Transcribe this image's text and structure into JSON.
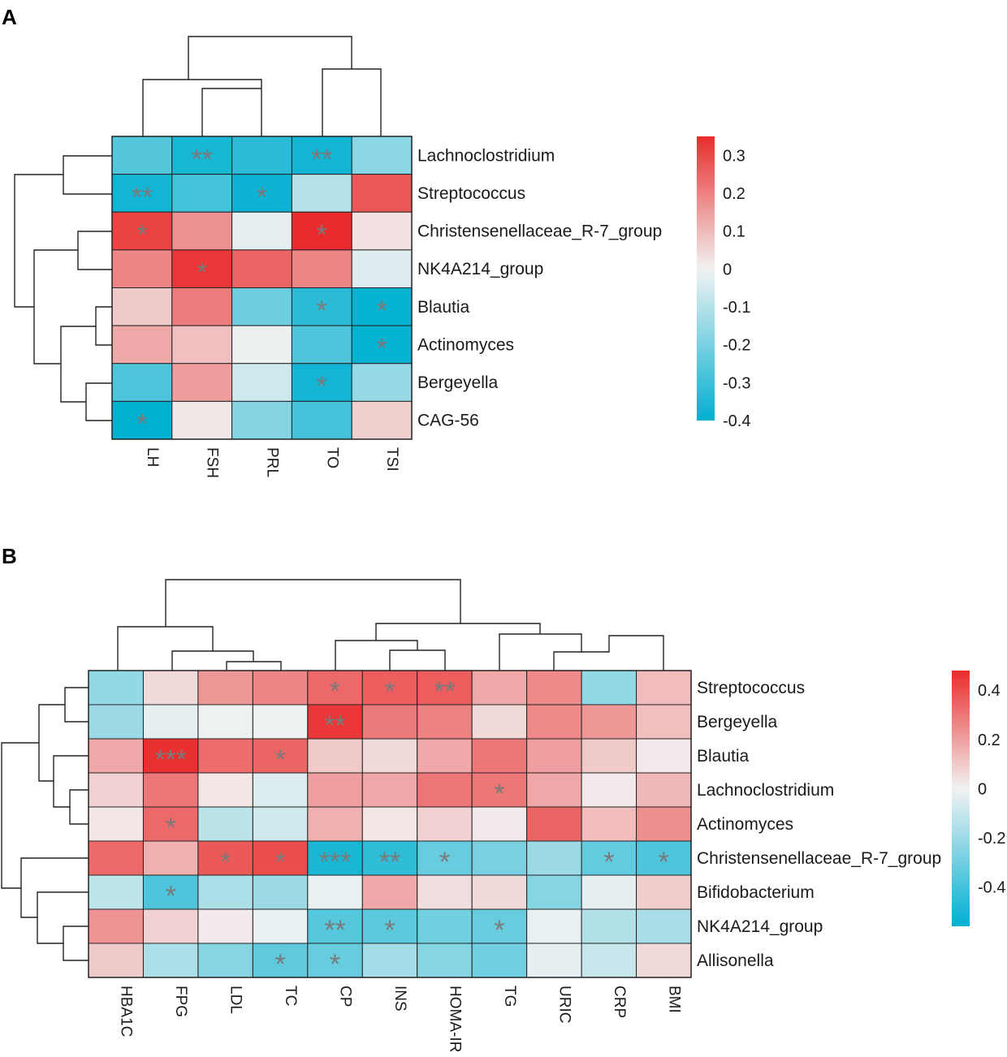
{
  "chart_data": [
    {
      "panel": "A",
      "type": "heatmap",
      "rows": [
        "Lachnoclostridium",
        "Streptococcus",
        "Christensenellaceae_R-7_group",
        "NK4A214_group",
        "Blautia",
        "Actinomyces",
        "Bergeyella",
        "CAG-56"
      ],
      "columns": [
        "LH",
        "FSH",
        "PRL",
        "TO",
        "TSI"
      ],
      "values": [
        [
          -0.26,
          -0.36,
          -0.33,
          -0.37,
          -0.17
        ],
        [
          -0.37,
          -0.29,
          -0.38,
          -0.1,
          0.27
        ],
        [
          0.31,
          0.17,
          -0.02,
          0.36,
          0.03
        ],
        [
          0.19,
          0.33,
          0.25,
          0.19,
          -0.03
        ],
        [
          0.07,
          0.21,
          -0.22,
          -0.33,
          -0.39
        ],
        [
          0.13,
          0.09,
          -0.01,
          -0.27,
          -0.39
        ],
        [
          -0.27,
          0.15,
          -0.06,
          -0.37,
          -0.15
        ],
        [
          -0.4,
          0.02,
          -0.18,
          -0.29,
          0.06
        ]
      ],
      "significance": [
        [
          "",
          "**",
          "",
          "**",
          ""
        ],
        [
          "**",
          "",
          "*",
          "",
          ""
        ],
        [
          "*",
          "",
          "",
          "*",
          ""
        ],
        [
          "",
          "*",
          "",
          "",
          ""
        ],
        [
          "",
          "",
          "",
          "*",
          "*"
        ],
        [
          "",
          "",
          "",
          "",
          "*"
        ],
        [
          "",
          "",
          "",
          "*",
          ""
        ],
        [
          "*",
          "",
          "",
          "",
          ""
        ]
      ],
      "colorbar": {
        "min": -0.4,
        "max": 0.35,
        "ticks": [
          "0.3",
          "0.2",
          "0.1",
          "0",
          "-0.1",
          "-0.2",
          "-0.3",
          "-0.4"
        ]
      },
      "colors": {
        "low": "#00b0d1",
        "mid": "#f2f2f2",
        "high": "#ea2b2b"
      }
    },
    {
      "panel": "B",
      "type": "heatmap",
      "rows": [
        "Streptococcus",
        "Bergeyella",
        "Blautia",
        "Lachnoclostridium",
        "Actinomyces",
        "Christensenellaceae_R-7_group",
        "Bifidobacterium",
        "NK4A214_group",
        "Allisonella"
      ],
      "columns": [
        "HBA1C",
        "FPG",
        "LDL",
        "TC",
        "CP",
        "INS",
        "HOMA-IR",
        "TG",
        "URIC",
        "CRP",
        "BMI"
      ],
      "values": [
        [
          -0.22,
          0.06,
          0.22,
          0.26,
          0.33,
          0.36,
          0.36,
          0.18,
          0.25,
          -0.22,
          0.13
        ],
        [
          -0.2,
          -0.03,
          -0.01,
          -0.01,
          0.45,
          0.29,
          0.27,
          0.06,
          0.25,
          0.22,
          0.12
        ],
        [
          0.18,
          0.47,
          0.32,
          0.34,
          0.1,
          0.06,
          0.18,
          0.3,
          0.2,
          0.1,
          0.02
        ],
        [
          0.08,
          0.3,
          0.03,
          -0.05,
          0.2,
          0.18,
          0.3,
          0.3,
          0.18,
          0.02,
          0.14
        ],
        [
          0.03,
          0.33,
          -0.13,
          -0.08,
          0.16,
          0.03,
          0.08,
          0.02,
          0.34,
          0.13,
          0.24
        ],
        [
          0.33,
          0.16,
          0.37,
          0.4,
          -0.5,
          -0.45,
          -0.32,
          -0.28,
          -0.2,
          -0.33,
          -0.38
        ],
        [
          -0.12,
          -0.38,
          -0.16,
          -0.2,
          -0.02,
          0.18,
          0.05,
          0.06,
          -0.25,
          -0.03,
          0.09
        ],
        [
          0.23,
          0.08,
          0.02,
          -0.02,
          -0.36,
          -0.35,
          -0.3,
          -0.32,
          -0.02,
          -0.15,
          -0.17
        ],
        [
          0.1,
          -0.16,
          -0.25,
          -0.34,
          -0.32,
          -0.18,
          -0.25,
          -0.3,
          -0.03,
          -0.1,
          0.06
        ]
      ],
      "significance": [
        [
          "",
          "",
          "",
          "",
          "*",
          "*",
          "**",
          "",
          "",
          "",
          ""
        ],
        [
          "",
          "",
          "",
          "",
          "**",
          "",
          "",
          "",
          "",
          "",
          ""
        ],
        [
          "",
          "***",
          "",
          "*",
          "",
          "",
          "",
          "",
          "",
          "",
          ""
        ],
        [
          "",
          "",
          "",
          "",
          "",
          "",
          "",
          "*",
          "",
          "",
          ""
        ],
        [
          "",
          "*",
          "",
          "",
          "",
          "",
          "",
          "",
          "",
          "",
          ""
        ],
        [
          "",
          "",
          "*",
          "*",
          "***",
          "**",
          "*",
          "",
          "",
          "*",
          "*"
        ],
        [
          "",
          "*",
          "",
          "",
          "",
          "",
          "",
          "",
          "",
          "",
          ""
        ],
        [
          "",
          "",
          "",
          "",
          "**",
          "*",
          "",
          "*",
          "",
          "",
          ""
        ],
        [
          "",
          "",
          "",
          "*",
          "*",
          "",
          "",
          "",
          "",
          "",
          ""
        ]
      ],
      "colorbar": {
        "min": -0.56,
        "max": 0.48,
        "ticks": [
          "0.4",
          "0.2",
          "0",
          "-0.2",
          "-0.4"
        ]
      },
      "colors": {
        "low": "#00b0d1",
        "mid": "#f2f2f2",
        "high": "#ea2b2b"
      }
    }
  ]
}
